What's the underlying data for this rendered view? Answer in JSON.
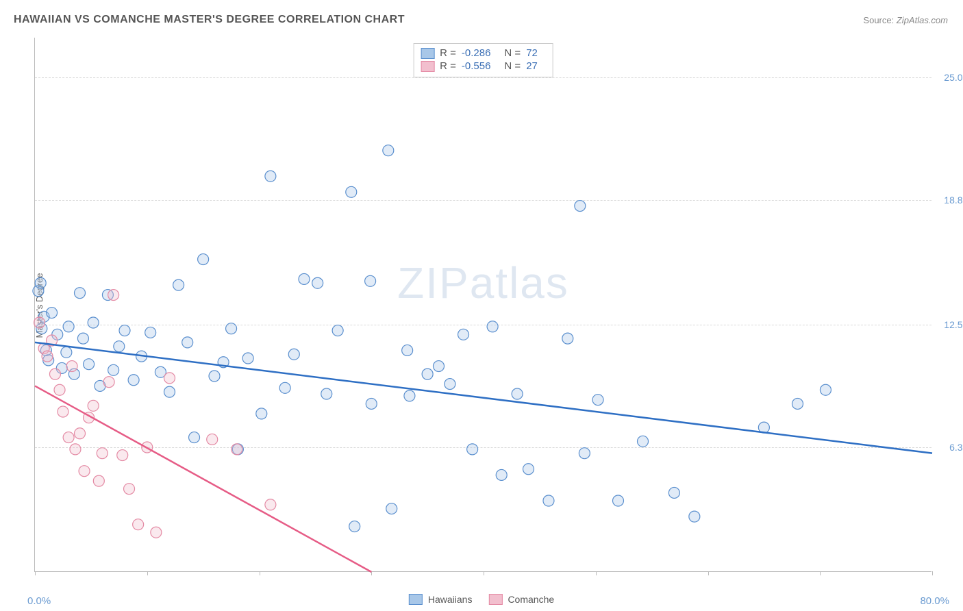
{
  "title": "HAWAIIAN VS COMANCHE MASTER'S DEGREE CORRELATION CHART",
  "source_label": "Source:",
  "source_value": "ZipAtlas.com",
  "ylabel": "Master's Degree",
  "watermark_zip": "ZIP",
  "watermark_atlas": "atlas",
  "chart": {
    "type": "scatter",
    "xlim": [
      0,
      80
    ],
    "ylim": [
      0,
      27
    ],
    "xmin_label": "0.0%",
    "xmax_label": "80.0%",
    "yticks": [
      {
        "v": 6.3,
        "label": "6.3%"
      },
      {
        "v": 12.5,
        "label": "12.5%"
      },
      {
        "v": 18.8,
        "label": "18.8%"
      },
      {
        "v": 25.0,
        "label": "25.0%"
      }
    ],
    "xticks": [
      0,
      10,
      20,
      30,
      40,
      50,
      60,
      70,
      80
    ],
    "grid_color": "#d8d8d8",
    "axis_color": "#bbbbbb",
    "bg_color": "#ffffff",
    "marker_radius": 8,
    "marker_stroke_width": 1.2,
    "marker_fill_opacity": 0.35,
    "trend_line_width": 2.5,
    "series": [
      {
        "name": "Hawaiians",
        "color_stroke": "#5a8fce",
        "color_fill": "#a8c7e8",
        "trend_color": "#2e6fc4",
        "R": "-0.286",
        "N": "72",
        "trend": {
          "x1": 0,
          "y1": 11.6,
          "x2": 80,
          "y2": 6.0
        },
        "points": [
          [
            0.3,
            14.2
          ],
          [
            0.5,
            14.6
          ],
          [
            0.6,
            12.3
          ],
          [
            0.8,
            12.9
          ],
          [
            1.0,
            11.2
          ],
          [
            1.2,
            10.7
          ],
          [
            1.5,
            13.1
          ],
          [
            2.0,
            12.0
          ],
          [
            2.4,
            10.3
          ],
          [
            2.8,
            11.1
          ],
          [
            3.0,
            12.4
          ],
          [
            3.5,
            10.0
          ],
          [
            4.0,
            14.1
          ],
          [
            4.3,
            11.8
          ],
          [
            4.8,
            10.5
          ],
          [
            5.2,
            12.6
          ],
          [
            5.8,
            9.4
          ],
          [
            6.5,
            14.0
          ],
          [
            7.0,
            10.2
          ],
          [
            7.5,
            11.4
          ],
          [
            8.0,
            12.2
          ],
          [
            8.8,
            9.7
          ],
          [
            9.5,
            10.9
          ],
          [
            10.3,
            12.1
          ],
          [
            11.2,
            10.1
          ],
          [
            12.0,
            9.1
          ],
          [
            12.8,
            14.5
          ],
          [
            13.6,
            11.6
          ],
          [
            14.2,
            6.8
          ],
          [
            15.0,
            15.8
          ],
          [
            16.0,
            9.9
          ],
          [
            16.8,
            10.6
          ],
          [
            17.5,
            12.3
          ],
          [
            18.1,
            6.2
          ],
          [
            19.0,
            10.8
          ],
          [
            20.2,
            8.0
          ],
          [
            21.0,
            20.0
          ],
          [
            22.3,
            9.3
          ],
          [
            23.1,
            11.0
          ],
          [
            24.0,
            14.8
          ],
          [
            25.2,
            14.6
          ],
          [
            26.0,
            9.0
          ],
          [
            27.0,
            12.2
          ],
          [
            28.2,
            19.2
          ],
          [
            28.5,
            2.3
          ],
          [
            29.9,
            14.7
          ],
          [
            30.0,
            8.5
          ],
          [
            31.5,
            21.3
          ],
          [
            31.8,
            3.2
          ],
          [
            33.2,
            11.2
          ],
          [
            33.4,
            8.9
          ],
          [
            35.0,
            10.0
          ],
          [
            36.0,
            10.4
          ],
          [
            37.0,
            9.5
          ],
          [
            38.2,
            12.0
          ],
          [
            39.0,
            6.2
          ],
          [
            40.8,
            12.4
          ],
          [
            41.6,
            4.9
          ],
          [
            43.0,
            9.0
          ],
          [
            44.0,
            5.2
          ],
          [
            45.8,
            3.6
          ],
          [
            47.5,
            11.8
          ],
          [
            48.6,
            18.5
          ],
          [
            49.0,
            6.0
          ],
          [
            50.2,
            8.7
          ],
          [
            52.0,
            3.6
          ],
          [
            54.2,
            6.6
          ],
          [
            57.0,
            4.0
          ],
          [
            58.8,
            2.8
          ],
          [
            65.0,
            7.3
          ],
          [
            68.0,
            8.5
          ],
          [
            70.5,
            9.2
          ]
        ]
      },
      {
        "name": "Comanche",
        "color_stroke": "#e48aa4",
        "color_fill": "#f2bfce",
        "trend_color": "#e65c86",
        "R": "-0.556",
        "N": "27",
        "trend": {
          "x1": 0,
          "y1": 9.4,
          "x2": 30,
          "y2": 0.0
        },
        "points": [
          [
            0.4,
            12.6
          ],
          [
            0.8,
            11.3
          ],
          [
            1.1,
            10.9
          ],
          [
            1.5,
            11.7
          ],
          [
            1.8,
            10.0
          ],
          [
            2.2,
            9.2
          ],
          [
            2.5,
            8.1
          ],
          [
            3.0,
            6.8
          ],
          [
            3.3,
            10.4
          ],
          [
            3.6,
            6.2
          ],
          [
            4.0,
            7.0
          ],
          [
            4.4,
            5.1
          ],
          [
            4.8,
            7.8
          ],
          [
            5.2,
            8.4
          ],
          [
            5.7,
            4.6
          ],
          [
            6.0,
            6.0
          ],
          [
            6.6,
            9.6
          ],
          [
            7.0,
            14.0
          ],
          [
            7.8,
            5.9
          ],
          [
            8.4,
            4.2
          ],
          [
            9.2,
            2.4
          ],
          [
            10.0,
            6.3
          ],
          [
            10.8,
            2.0
          ],
          [
            12.0,
            9.8
          ],
          [
            15.8,
            6.7
          ],
          [
            18.0,
            6.2
          ],
          [
            21.0,
            3.4
          ]
        ]
      }
    ]
  },
  "legend_top_r_label": "R =",
  "legend_top_n_label": "N =",
  "legend_bottom": [
    {
      "label": "Hawaiians",
      "stroke": "#5a8fce",
      "fill": "#a8c7e8"
    },
    {
      "label": "Comanche",
      "stroke": "#e48aa4",
      "fill": "#f2bfce"
    }
  ],
  "title_fontsize": 16,
  "label_fontsize": 13,
  "tick_fontsize": 14
}
